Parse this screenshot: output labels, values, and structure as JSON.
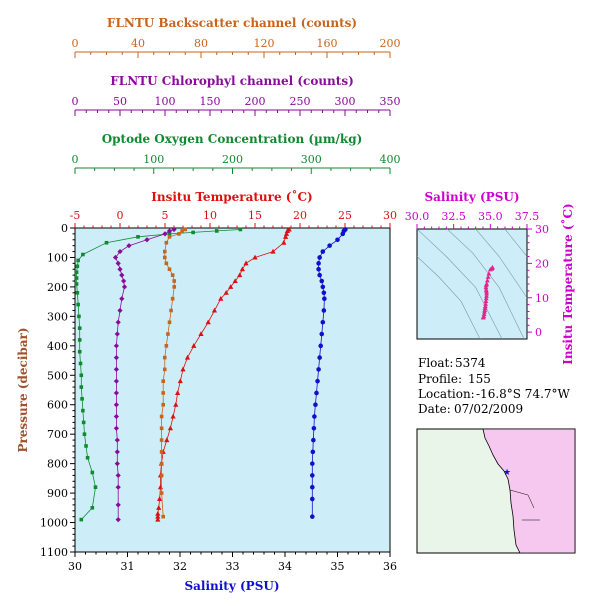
{
  "colors": {
    "backscatter": "#c8641e",
    "chlorophyll": "#8a0a9a",
    "oxygen": "#108a30",
    "temperature": "#dd1010",
    "salinity": "#1010cc",
    "ts_marker": "#e0288c",
    "ts_axis": "#cc00cc",
    "plot_bg": "#cdeef8",
    "pressure_axis": "#a0522d",
    "land": "#f7c8ef",
    "ocean": "#eaf5ea"
  },
  "info": {
    "float_label": "Float:",
    "float_value": "5374",
    "profile_label": "Profile:",
    "profile_value": "155",
    "location_label": "Location:",
    "location_value": "-16.8°S  74.7°W",
    "date_label": "Date:",
    "date_value": "07/02/2009"
  },
  "footer_text": "",
  "chart_data": [
    {
      "type": "line",
      "id": "main_profile",
      "ylabel": "Pressure (decibar)",
      "ylim": [
        1100,
        0
      ],
      "yticks": [
        0,
        100,
        200,
        300,
        400,
        500,
        600,
        700,
        800,
        900,
        1000,
        1100
      ],
      "axes": {
        "backscatter": {
          "label": "FLNTU Backscatter channel (counts)",
          "range": [
            0,
            200
          ],
          "ticks": [
            0,
            40,
            80,
            120,
            160,
            200
          ]
        },
        "chlorophyll": {
          "label": "FLNTU Chlorophyl channel (counts)",
          "range": [
            0,
            350
          ],
          "ticks": [
            0,
            50,
            100,
            150,
            200,
            250,
            300,
            350
          ]
        },
        "oxygen": {
          "label": "Optode Oxygen Concentration (µm/kg)",
          "range": [
            0,
            400
          ],
          "ticks": [
            0,
            100,
            200,
            300,
            400
          ]
        },
        "temperature": {
          "label": "Insitu Temperature (˚C)",
          "range": [
            -5,
            30
          ],
          "ticks": [
            -5,
            0,
            5,
            10,
            15,
            20,
            25,
            30
          ]
        },
        "salinity": {
          "label": "Salinity (PSU)",
          "range": [
            30,
            36
          ],
          "ticks": [
            30,
            31,
            32,
            33,
            34,
            35,
            36
          ]
        }
      },
      "series": [
        {
          "key": "temperature",
          "marker": "triangle",
          "x": [
            18.8,
            18.6,
            18.5,
            18.4,
            18.2,
            17.0,
            15.0,
            14.0,
            13.6,
            13.3,
            12.8,
            12.3,
            11.8,
            11.2,
            10.5,
            9.8,
            9.0,
            8.2,
            7.5,
            7.0,
            6.7,
            6.4,
            6.2,
            5.9,
            5.6,
            5.2,
            4.8,
            4.6,
            4.5,
            4.5,
            4.4,
            4.3,
            4.2,
            4.2,
            4.2
          ],
          "y": [
            5,
            10,
            20,
            30,
            50,
            80,
            100,
            120,
            140,
            160,
            180,
            200,
            220,
            240,
            280,
            320,
            360,
            400,
            440,
            480,
            520,
            560,
            600,
            640,
            680,
            720,
            760,
            800,
            840,
            880,
            920,
            950,
            970,
            980,
            990
          ]
        },
        {
          "key": "salinity",
          "marker": "circle",
          "x": [
            35.15,
            35.12,
            35.1,
            35.0,
            34.85,
            34.72,
            34.66,
            34.64,
            34.64,
            34.66,
            34.7,
            34.72,
            34.74,
            34.75,
            34.74,
            34.72,
            34.7,
            34.68,
            34.66,
            34.64,
            34.62,
            34.6,
            34.58,
            34.56,
            34.55,
            34.54,
            34.53,
            34.52,
            34.52,
            34.52,
            34.52,
            34.52
          ],
          "y": [
            5,
            10,
            20,
            40,
            60,
            80,
            100,
            120,
            140,
            160,
            180,
            200,
            220,
            240,
            280,
            320,
            360,
            400,
            440,
            480,
            520,
            560,
            600,
            640,
            680,
            720,
            760,
            800,
            840,
            880,
            920,
            980
          ]
        },
        {
          "key": "oxygen",
          "marker": "square",
          "x": [
            210,
            180,
            150,
            120,
            80,
            40,
            10,
            4,
            3,
            2,
            2,
            2,
            3,
            4,
            5,
            6,
            6,
            6,
            7,
            8,
            8,
            9,
            10,
            11,
            12,
            14,
            16,
            22,
            26,
            22,
            8
          ],
          "y": [
            5,
            10,
            15,
            20,
            30,
            50,
            90,
            110,
            130,
            150,
            170,
            190,
            220,
            260,
            300,
            340,
            380,
            420,
            460,
            500,
            540,
            580,
            620,
            660,
            700,
            740,
            780,
            830,
            880,
            950,
            990
          ]
        },
        {
          "key": "chlorophyll",
          "marker": "diamond",
          "x": [
            110,
            105,
            100,
            80,
            60,
            50,
            45,
            48,
            50,
            52,
            54,
            55,
            52,
            50,
            48,
            47,
            46,
            46,
            46,
            46,
            46,
            46,
            46,
            46,
            47,
            47,
            47,
            48,
            48,
            48,
            48
          ],
          "y": [
            5,
            10,
            20,
            40,
            60,
            80,
            100,
            120,
            140,
            160,
            180,
            200,
            240,
            280,
            320,
            360,
            400,
            440,
            480,
            520,
            560,
            600,
            640,
            680,
            720,
            760,
            800,
            840,
            880,
            940,
            990
          ]
        },
        {
          "key": "backscatter",
          "marker": "square",
          "x": [
            70,
            68,
            66,
            60,
            58,
            57,
            57,
            58,
            60,
            62,
            63,
            63,
            62,
            61,
            60,
            59,
            58,
            57,
            57,
            56,
            56,
            56,
            55,
            55,
            55,
            55,
            55,
            55,
            55,
            56
          ],
          "y": [
            5,
            10,
            20,
            30,
            50,
            80,
            100,
            120,
            140,
            160,
            180,
            200,
            240,
            280,
            320,
            360,
            400,
            440,
            480,
            520,
            560,
            600,
            640,
            680,
            720,
            760,
            800,
            840,
            900,
            980
          ]
        }
      ]
    },
    {
      "type": "scatter",
      "id": "ts_diagram",
      "xlabel": "Salinity (PSU)",
      "ylabel": "Insitu Temperature (˚C)",
      "xlim": [
        30,
        37.5
      ],
      "ylim": [
        -2,
        30
      ],
      "xticks": [
        30.0,
        32.5,
        35.0,
        37.5
      ],
      "xtick_labels": [
        "30.0",
        "32.5",
        "35.0",
        "37.5"
      ],
      "yticks": [
        0,
        10,
        20,
        30
      ],
      "points": [
        [
          35.15,
          18.8
        ],
        [
          35.12,
          18.6
        ],
        [
          35.1,
          18.4
        ],
        [
          35.0,
          18.2
        ],
        [
          34.9,
          17.0
        ],
        [
          34.85,
          16.0
        ],
        [
          34.8,
          15.0
        ],
        [
          34.75,
          14.0
        ],
        [
          34.72,
          13.6
        ],
        [
          34.7,
          13.0
        ],
        [
          34.72,
          12.3
        ],
        [
          34.74,
          11.8
        ],
        [
          34.75,
          11.2
        ],
        [
          34.74,
          10.5
        ],
        [
          34.72,
          9.8
        ],
        [
          34.7,
          9.0
        ],
        [
          34.68,
          8.2
        ],
        [
          34.66,
          7.5
        ],
        [
          34.64,
          7.0
        ],
        [
          34.62,
          6.4
        ],
        [
          34.6,
          5.9
        ],
        [
          34.58,
          5.2
        ],
        [
          34.55,
          4.6
        ],
        [
          34.52,
          4.3
        ],
        [
          34.52,
          4.2
        ]
      ]
    }
  ]
}
